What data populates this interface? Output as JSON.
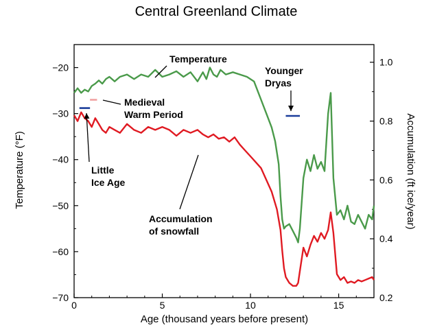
{
  "chart_data": {
    "type": "line",
    "title": "Central Greenland Climate",
    "xlabel": "Age (thousand years before present)",
    "ylabel": "Temperature (°F)",
    "y2label": "Accumulation (ft ice/year)",
    "xlim": [
      0,
      17
    ],
    "ylim": [
      -70,
      -15
    ],
    "y2lim": [
      0.2,
      1.06
    ],
    "x_ticks": [
      0,
      5,
      10,
      15
    ],
    "y_ticks": [
      -20,
      -30,
      -40,
      -50,
      -60,
      -70
    ],
    "y2_ticks": [
      "0.2",
      "0.4",
      "0.6",
      "0.8",
      "1.0"
    ],
    "grid": false,
    "colors": {
      "temperature": "#4a9a4a",
      "accumulation": "#e01a22",
      "markers": "#1a3d9a",
      "medieval": "#f0a0a0"
    },
    "series": [
      {
        "name": "Temperature",
        "axis": "left",
        "x": [
          0,
          0.2,
          0.4,
          0.6,
          0.8,
          1.0,
          1.2,
          1.4,
          1.6,
          1.8,
          2.0,
          2.3,
          2.6,
          3.0,
          3.4,
          3.8,
          4.2,
          4.6,
          5.0,
          5.4,
          5.8,
          6.2,
          6.6,
          7.0,
          7.3,
          7.5,
          7.7,
          7.9,
          8.1,
          8.3,
          8.6,
          9.0,
          9.4,
          9.8,
          10.2,
          10.6,
          10.9,
          11.2,
          11.4,
          11.6,
          11.7,
          11.8,
          11.9,
          12.0,
          12.2,
          12.4,
          12.6,
          12.7,
          12.8,
          13.0,
          13.2,
          13.4,
          13.6,
          13.8,
          14.0,
          14.2,
          14.4,
          14.55,
          14.7,
          14.9,
          15.1,
          15.3,
          15.5,
          15.7,
          15.9,
          16.1,
          16.3,
          16.5,
          16.7,
          16.9,
          17.0
        ],
        "values": [
          -25.5,
          -24.5,
          -25.5,
          -24.8,
          -25.2,
          -24,
          -23.5,
          -22.8,
          -23.5,
          -22.5,
          -22,
          -23,
          -22,
          -21.5,
          -22.5,
          -21.5,
          -22,
          -20.5,
          -22,
          -21.5,
          -20.8,
          -22,
          -21,
          -23,
          -21,
          -22.5,
          -20,
          -21.5,
          -22,
          -20.5,
          -21.5,
          -21,
          -21.5,
          -22,
          -23,
          -27,
          -30,
          -33,
          -36,
          -41,
          -48,
          -53,
          -55,
          -54.5,
          -54,
          -55.5,
          -57,
          -58,
          -55,
          -44,
          -40,
          -42.5,
          -39,
          -42,
          -40.5,
          -42.5,
          -30,
          -25.5,
          -44,
          -52,
          -51,
          -53,
          -50,
          -53.5,
          -54,
          -52,
          -53.5,
          -55,
          -52,
          -53,
          -50
        ]
      },
      {
        "name": "Accumulation of snowfall",
        "axis": "right",
        "x": [
          0,
          0.2,
          0.4,
          0.6,
          0.8,
          1.0,
          1.2,
          1.4,
          1.6,
          1.8,
          2.0,
          2.3,
          2.6,
          3.0,
          3.4,
          3.8,
          4.2,
          4.6,
          5.0,
          5.4,
          5.8,
          6.2,
          6.6,
          7.0,
          7.3,
          7.6,
          7.9,
          8.2,
          8.5,
          8.8,
          9.1,
          9.4,
          9.7,
          10.0,
          10.3,
          10.6,
          10.9,
          11.2,
          11.5,
          11.7,
          11.8,
          11.9,
          12.0,
          12.2,
          12.4,
          12.6,
          12.7,
          12.8,
          12.9,
          13.0,
          13.2,
          13.4,
          13.6,
          13.8,
          14.0,
          14.2,
          14.4,
          14.55,
          14.7,
          14.9,
          15.1,
          15.3,
          15.5,
          15.7,
          15.9,
          16.1,
          16.3,
          16.5,
          16.7,
          16.9,
          17.0
        ],
        "values": [
          0.82,
          0.8,
          0.83,
          0.81,
          0.8,
          0.78,
          0.81,
          0.79,
          0.77,
          0.76,
          0.78,
          0.77,
          0.76,
          0.79,
          0.77,
          0.76,
          0.78,
          0.77,
          0.78,
          0.77,
          0.75,
          0.77,
          0.76,
          0.77,
          0.755,
          0.745,
          0.755,
          0.74,
          0.745,
          0.73,
          0.745,
          0.72,
          0.7,
          0.68,
          0.66,
          0.64,
          0.6,
          0.56,
          0.5,
          0.43,
          0.36,
          0.3,
          0.27,
          0.25,
          0.24,
          0.24,
          0.25,
          0.29,
          0.33,
          0.37,
          0.34,
          0.38,
          0.41,
          0.39,
          0.42,
          0.4,
          0.43,
          0.49,
          0.42,
          0.28,
          0.26,
          0.27,
          0.25,
          0.255,
          0.25,
          0.26,
          0.255,
          0.26,
          0.265,
          0.27,
          0.26
        ]
      }
    ],
    "annotations": [
      {
        "id": "temperature",
        "lines": [
          "Temperature"
        ]
      },
      {
        "id": "medieval",
        "lines": [
          "Medieval",
          "Warm Period"
        ]
      },
      {
        "id": "younger-dryas",
        "lines": [
          "Younger",
          "Dryas"
        ]
      },
      {
        "id": "little-ice-age",
        "lines": [
          "Little",
          "Ice Age"
        ]
      },
      {
        "id": "accumulation",
        "lines": [
          "Accumulation",
          "of snowfall"
        ]
      }
    ],
    "period_markers": [
      {
        "id": "little-ice-age",
        "x_range": [
          0.3,
          0.9
        ],
        "y": -28.8
      },
      {
        "id": "medieval",
        "x_range": [
          0.9,
          1.3
        ],
        "y": -27
      },
      {
        "id": "younger-dryas",
        "x_range": [
          12.0,
          12.8
        ],
        "y": -30.5
      }
    ]
  }
}
